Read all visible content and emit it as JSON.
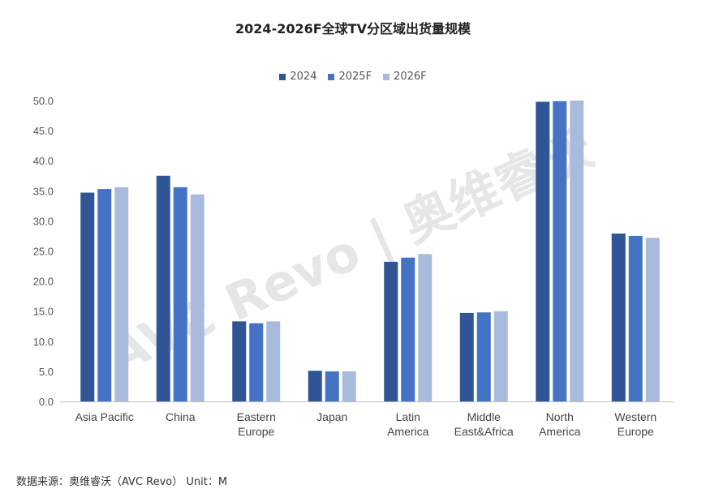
{
  "chart_data": {
    "type": "bar",
    "title": "2024-2026F全球TV分区域出货量规模",
    "categories": [
      [
        "Asia Pacific"
      ],
      [
        "China"
      ],
      [
        "Eastern",
        "Europe"
      ],
      [
        "Japan"
      ],
      [
        "Latin",
        "America"
      ],
      [
        "Middle",
        "East&Africa"
      ],
      [
        "North",
        "America"
      ],
      [
        "Western",
        "Europe"
      ]
    ],
    "series": [
      {
        "name": "2024",
        "color": "#2f5597",
        "values": [
          34.7,
          37.5,
          13.3,
          5.1,
          23.2,
          14.7,
          49.8,
          27.9
        ]
      },
      {
        "name": "2025F",
        "color": "#4472c4",
        "values": [
          35.3,
          35.6,
          13.0,
          5.0,
          23.9,
          14.8,
          49.9,
          27.5
        ]
      },
      {
        "name": "2026F",
        "color": "#a9bbdd",
        "values": [
          35.6,
          34.4,
          13.3,
          5.0,
          24.5,
          15.0,
          50.0,
          27.2
        ]
      }
    ],
    "yticks": [
      "0.0",
      "5.0",
      "10.0",
      "15.0",
      "20.0",
      "25.0",
      "30.0",
      "35.0",
      "40.0",
      "45.0",
      "50.0"
    ],
    "ylim": [
      0,
      50
    ],
    "grid": false,
    "legend_position": "top-center",
    "watermark": "AVC Revo | 奥维睿沃"
  },
  "source_note": "数据来源：奥维睿沃（AVC Revo） Unit：M"
}
